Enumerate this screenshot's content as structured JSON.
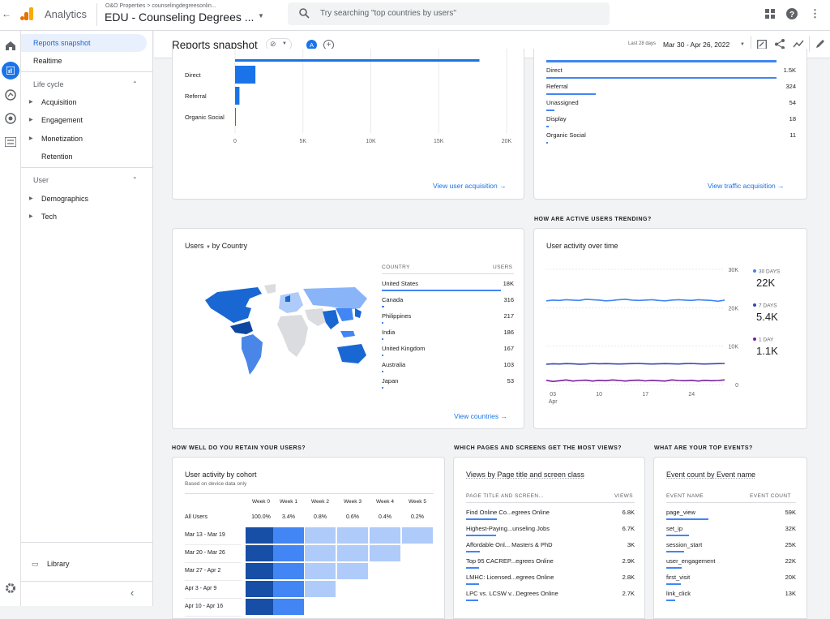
{
  "topbar": {
    "back": "←",
    "app": "Analytics",
    "breadcrumb": "O&O Properties > counselingdegreesonlin...",
    "property": "EDU - Counseling Degrees ...",
    "search_placeholder": "Try searching \"top countries by users\""
  },
  "header": {
    "title": "Reports snapshot",
    "avatar": "A",
    "date_label": "Last 28 days",
    "date_range": "Mar 30 - Apr 26, 2022"
  },
  "nav": {
    "snapshot": "Reports snapshot",
    "realtime": "Realtime",
    "lifecycle": "Life cycle",
    "acquisition": "Acquisition",
    "engagement": "Engagement",
    "monetization": "Monetization",
    "retention": "Retention",
    "user": "User",
    "demographics": "Demographics",
    "tech": "Tech",
    "library": "Library"
  },
  "acq_chart": {
    "cats": [
      "Direct",
      "Referral",
      "Organic Social"
    ],
    "values": [
      1500,
      324,
      11
    ],
    "ticks": [
      "0",
      "5K",
      "10K",
      "15K",
      "20K"
    ],
    "link": "View user acquisition"
  },
  "traffic": {
    "rows": [
      [
        "Direct",
        "1.5K"
      ],
      [
        "Referral",
        "324"
      ],
      [
        "Unassigned",
        "54"
      ],
      [
        "Display",
        "18"
      ],
      [
        "Organic Social",
        "11"
      ]
    ],
    "link": "View traffic acquisition"
  },
  "country": {
    "title1": "Users",
    "title2": "by Country",
    "col1": "COUNTRY",
    "col2": "USERS",
    "rows": [
      [
        "United States",
        "18K"
      ],
      [
        "Canada",
        "316"
      ],
      [
        "Philippines",
        "217"
      ],
      [
        "India",
        "186"
      ],
      [
        "United Kingdom",
        "167"
      ],
      [
        "Australia",
        "103"
      ],
      [
        "Japan",
        "53"
      ]
    ],
    "link": "View countries"
  },
  "trend": {
    "section": "HOW ARE ACTIVE USERS TRENDING?",
    "title": "User activity over time",
    "yticks": [
      "30K",
      "20K",
      "10K",
      "0"
    ],
    "xticks": [
      "03",
      "10",
      "17",
      "24"
    ],
    "xsub": "Apr",
    "legend": [
      {
        "label": "30 DAYS",
        "value": "22K"
      },
      {
        "label": "7 DAYS",
        "value": "5.4K"
      },
      {
        "label": "1 DAY",
        "value": "1.1K"
      }
    ]
  },
  "retain": {
    "section": "HOW WELL DO YOU RETAIN YOUR USERS?",
    "title": "User activity by cohort",
    "sub": "Based on device data only",
    "weeks": [
      "Week 0",
      "Week 1",
      "Week 2",
      "Week 3",
      "Week 4",
      "Week 5"
    ],
    "all": [
      "All Users",
      "100.0%",
      "3.4%",
      "0.8%",
      "0.6%",
      "0.4%",
      "0.2%"
    ],
    "cohorts": [
      "Mar 13 - Mar 19",
      "Mar 20 - Mar 26",
      "Mar 27 - Apr 2",
      "Apr 3 - Apr 9",
      "Apr 10 - Apr 16"
    ]
  },
  "pages": {
    "section": "WHICH PAGES AND SCREENS GET THE MOST VIEWS?",
    "title": "Views by Page title and screen class",
    "col1": "PAGE TITLE AND SCREEN...",
    "col2": "VIEWS",
    "rows": [
      [
        "Find Online Co...egrees Online",
        "6.8K"
      ],
      [
        "Highest-Paying...unseling Jobs",
        "6.7K"
      ],
      [
        "Affordable Onl... Masters & PhD",
        "3K"
      ],
      [
        "Top 95 CACREP...egrees Online",
        "2.9K"
      ],
      [
        "LMHC: Licensed...egrees Online",
        "2.8K"
      ],
      [
        "LPC vs. LCSW v...Degrees Online",
        "2.7K"
      ]
    ]
  },
  "events": {
    "section": "WHAT ARE YOUR TOP EVENTS?",
    "title": "Event count by Event name",
    "col1": "EVENT NAME",
    "col2": "EVENT COUNT",
    "rows": [
      [
        "page_view",
        "59K"
      ],
      [
        "set_ip",
        "32K"
      ],
      [
        "session_start",
        "25K"
      ],
      [
        "user_engagement",
        "22K"
      ],
      [
        "first_visit",
        "20K"
      ],
      [
        "link_click",
        "13K"
      ]
    ]
  }
}
